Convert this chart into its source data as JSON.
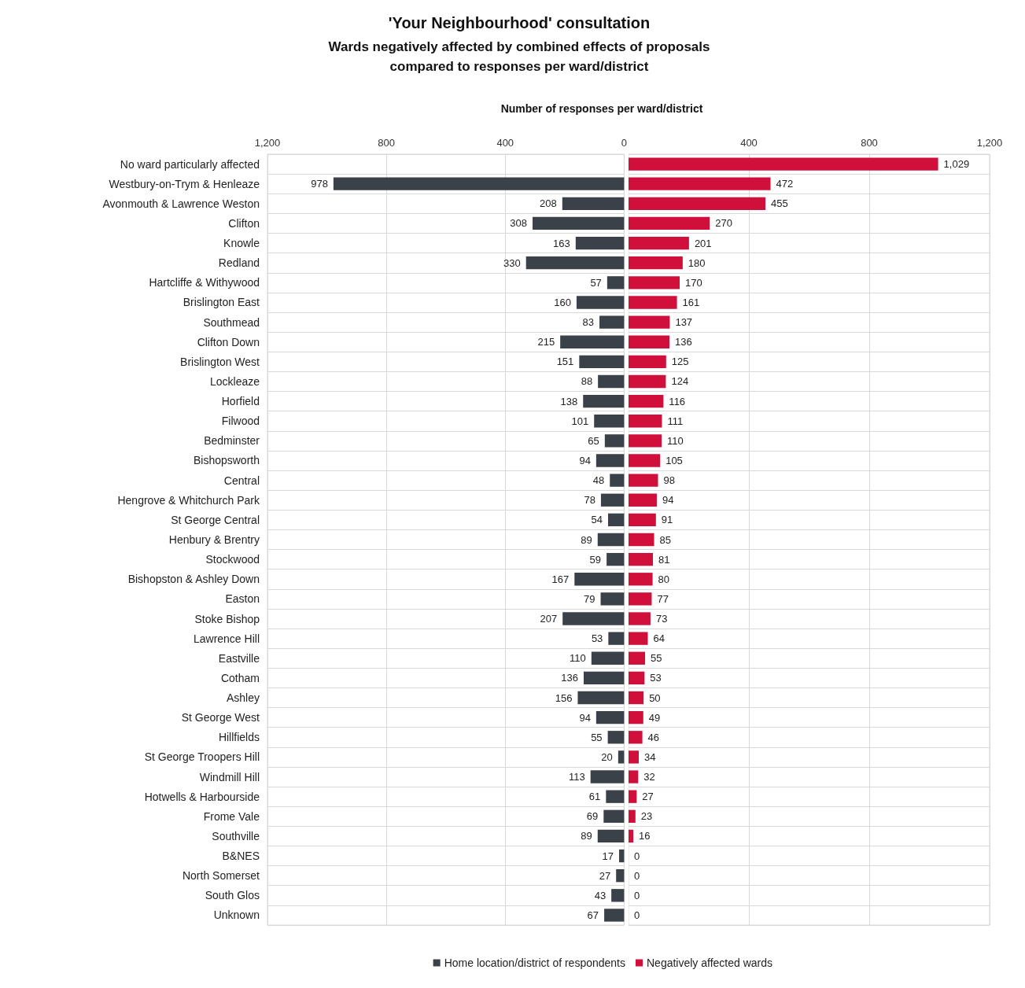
{
  "chart_data": [
    {
      "type": "bar",
      "orientation": "horizontal",
      "title": "'Your Neighbourhood' consultation",
      "subtitle": "Wards negatively affected by combined effects of proposals\ncompared to responses per ward/district",
      "xlabel": "Number of responses per ward/district",
      "categories": [
        "No ward particularly affected",
        "Westbury-on-Trym & Henleaze",
        "Avonmouth & Lawrence Weston",
        "Clifton",
        "Knowle",
        "Redland",
        "Hartcliffe & Withywood",
        "Brislington East",
        "Southmead",
        "Clifton Down",
        "Brislington West",
        "Lockleaze",
        "Horfield",
        "Filwood",
        "Bedminster",
        "Bishopsworth",
        "Central",
        "Hengrove & Whitchurch Park",
        "St George Central",
        "Henbury & Brentry",
        "Stockwood",
        "Bishopston & Ashley Down",
        "Easton",
        "Stoke Bishop",
        "Lawrence Hill",
        "Eastville",
        "Cotham",
        "Ashley",
        "St George West",
        "Hillfields",
        "St George Troopers Hill",
        "Windmill Hill",
        "Hotwells & Harbourside",
        "Frome Vale",
        "Southville",
        "B&NES",
        "North Somerset",
        "South Glos",
        "Unknown"
      ],
      "series": [
        {
          "name": "Home location/district of respondents",
          "color": "#3b4149",
          "values": [
            null,
            978,
            208,
            308,
            163,
            330,
            57,
            160,
            83,
            215,
            151,
            88,
            138,
            101,
            65,
            94,
            48,
            78,
            54,
            89,
            59,
            167,
            79,
            207,
            53,
            110,
            136,
            156,
            94,
            55,
            20,
            113,
            61,
            69,
            89,
            17,
            27,
            43,
            67
          ]
        }
      ],
      "xlim": [
        1200,
        0
      ],
      "xticks": [
        {
          "value": 1200,
          "label": "1,200"
        },
        800,
        400,
        0
      ],
      "data_labels": true,
      "grid": true,
      "legend": "bottom"
    },
    {
      "type": "bar",
      "orientation": "horizontal",
      "categories": [
        null,
        null,
        null,
        null,
        null,
        null,
        null,
        null,
        null,
        null,
        null,
        null,
        null,
        null,
        null,
        null,
        null,
        null,
        null,
        null,
        null,
        null,
        null,
        null,
        null,
        null,
        null,
        null,
        null,
        null,
        null,
        null,
        null,
        null,
        null,
        null,
        null,
        null,
        null
      ],
      "series": [
        {
          "name": "Negatively affected wards",
          "color": "#d0103a",
          "values": [
            1029,
            472,
            455,
            270,
            201,
            180,
            170,
            161,
            137,
            136,
            125,
            124,
            116,
            111,
            110,
            105,
            98,
            94,
            91,
            85,
            81,
            80,
            77,
            73,
            64,
            55,
            53,
            50,
            49,
            46,
            34,
            32,
            27,
            23,
            16,
            0,
            0,
            0,
            0
          ],
          "value_labels": [
            "1,029",
            "472",
            "455",
            "270",
            "201",
            "180",
            "170",
            "161",
            "137",
            "136",
            "125",
            "124",
            "116",
            "111",
            "110",
            "105",
            "98",
            "94",
            "91",
            "85",
            "81",
            "80",
            "77",
            "73",
            "64",
            "55",
            "53",
            "50",
            "49",
            "46",
            "34",
            "32",
            "27",
            "23",
            "16",
            "0",
            "0",
            "0",
            "0"
          ]
        }
      ],
      "xlim": [
        0,
        1200
      ],
      "xticks": [
        400,
        800,
        {
          "value": 1200,
          "label": "1,200"
        }
      ],
      "tick_labels": "x",
      "grid": true,
      "legend": "bottom"
    }
  ]
}
